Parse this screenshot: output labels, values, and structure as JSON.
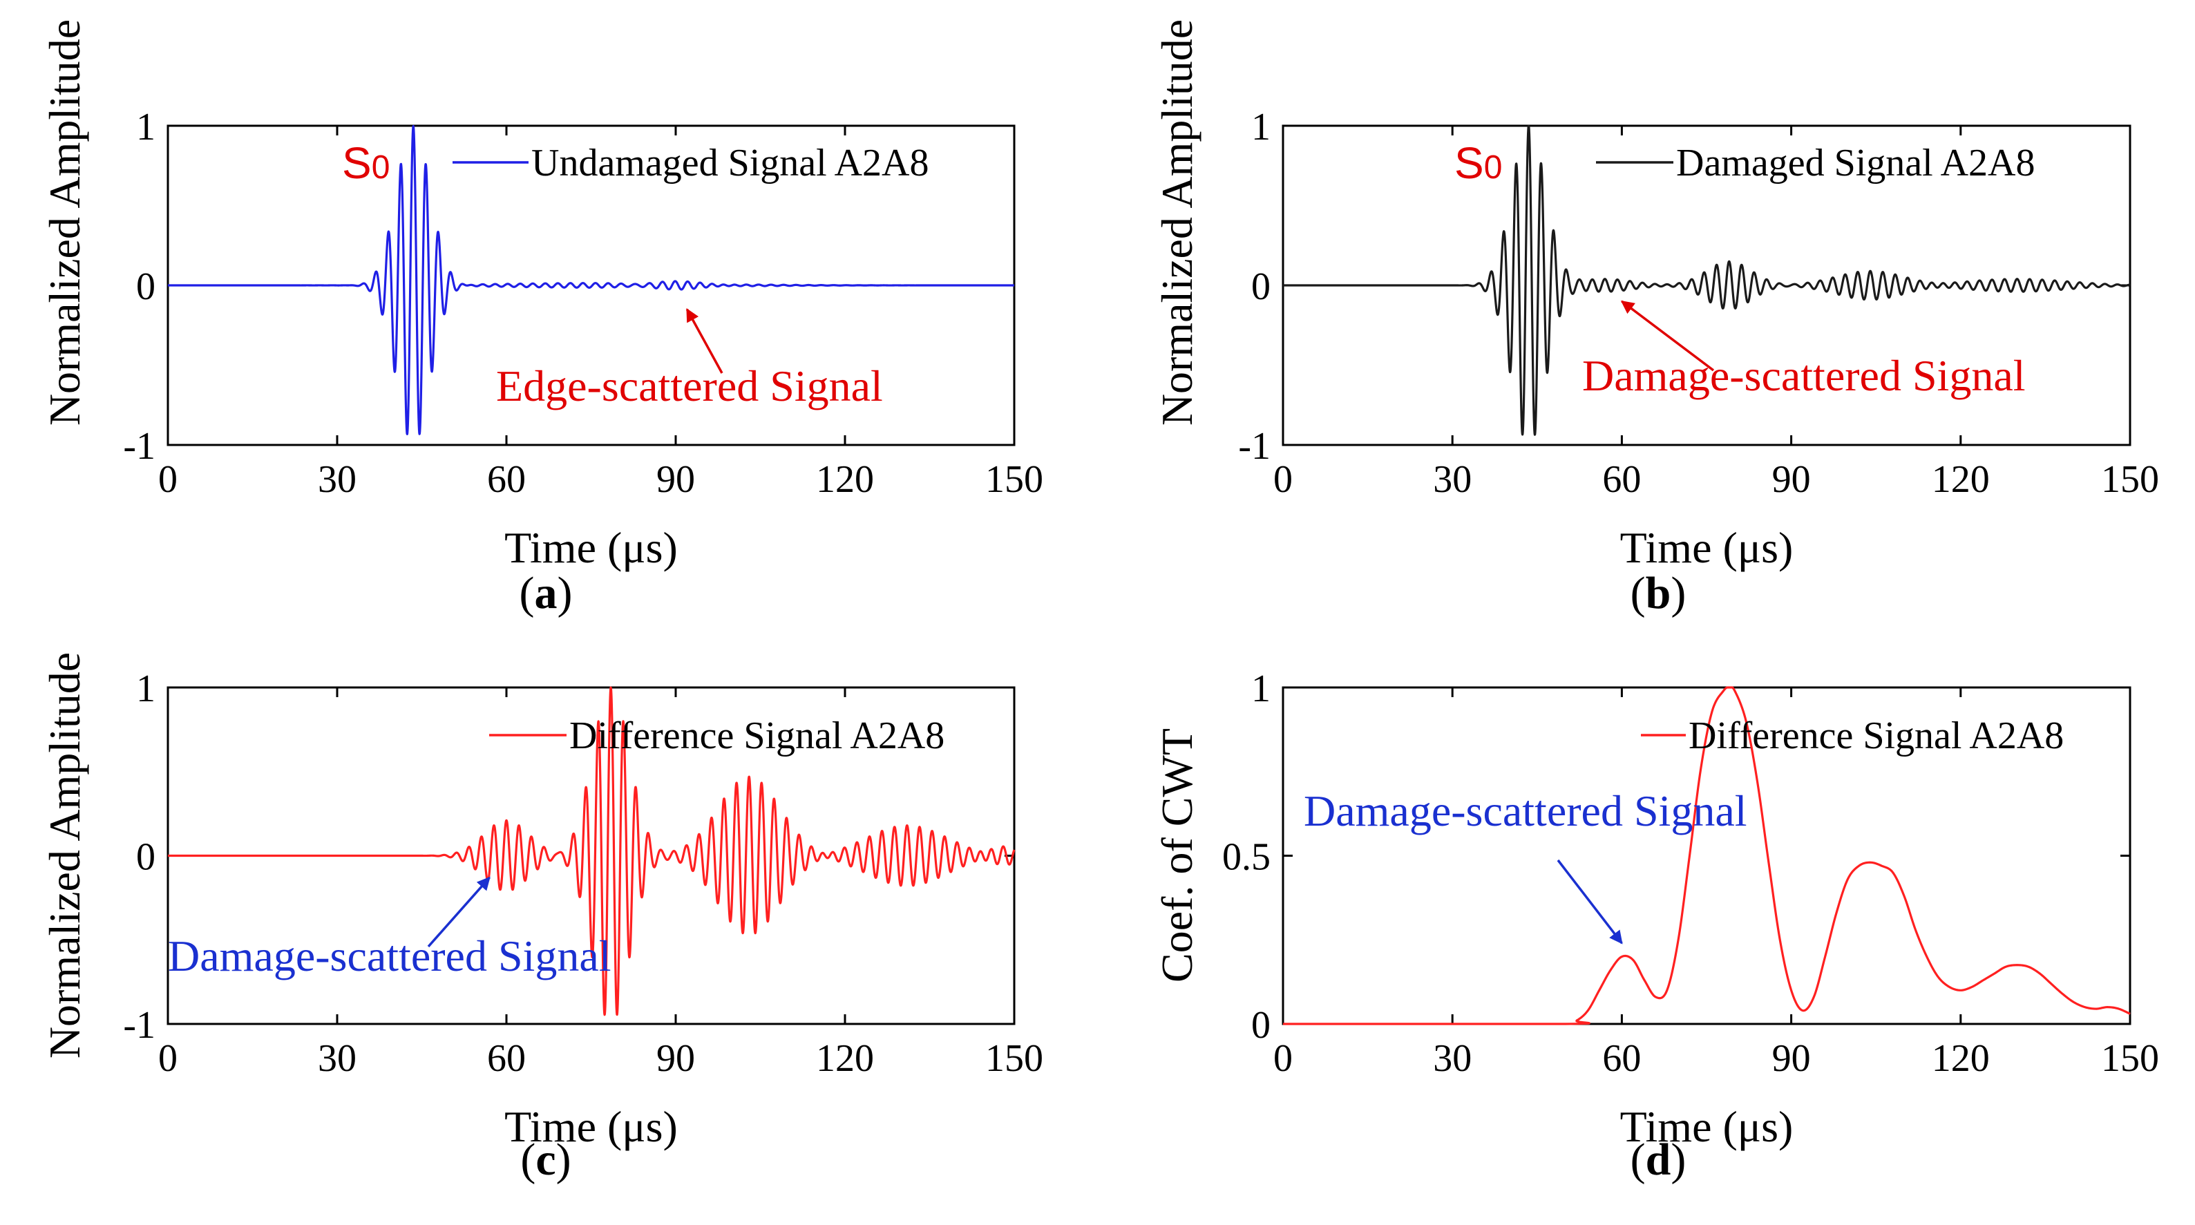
{
  "chart_data": [
    {
      "id": "a",
      "type": "line",
      "caption_letter": "a",
      "xlabel": "Time (μs)",
      "ylabel": "Normalized Amplitude",
      "xlim": [
        0,
        150
      ],
      "ylim": [
        -1,
        1
      ],
      "xticks": [
        "0",
        "30",
        "60",
        "90",
        "120",
        "150"
      ],
      "yticks": [
        "-1",
        "0",
        "1"
      ],
      "series": [
        {
          "name": "Undamaged Signal A2A8",
          "color": "#1f1fe6",
          "packets": [
            {
              "center": 43.5,
              "amp": 1.0,
              "freq": 0.45,
              "sigma": 3.0
            },
            {
              "center": 90,
              "amp": 0.035,
              "freq": 0.45,
              "sigma": 5
            },
            {
              "center": 78,
              "amp": 0.015,
              "freq": 0.45,
              "sigma": 18
            }
          ]
        }
      ],
      "annotations": [
        {
          "text": "S0",
          "color": "#e00000"
        },
        {
          "text": "Edge-scattered Signal",
          "color": "#e00000",
          "arrow_to": [
            92,
            -0.15
          ]
        }
      ]
    },
    {
      "id": "b",
      "type": "line",
      "caption_letter": "b",
      "xlabel": "Time (μs)",
      "ylabel": "Normalized Amplitude",
      "xlim": [
        0,
        150
      ],
      "ylim": [
        -1,
        1
      ],
      "xticks": [
        "0",
        "30",
        "60",
        "90",
        "120",
        "150"
      ],
      "yticks": [
        "-1",
        "0",
        "1"
      ],
      "series": [
        {
          "name": "Damaged Signal A2A8",
          "color": "#1a1a1a",
          "packets": [
            {
              "center": 43.5,
              "amp": 1.0,
              "freq": 0.45,
              "sigma": 3.0
            },
            {
              "center": 57,
              "amp": 0.04,
              "freq": 0.45,
              "sigma": 5
            },
            {
              "center": 79,
              "amp": 0.15,
              "freq": 0.45,
              "sigma": 4
            },
            {
              "center": 104,
              "amp": 0.09,
              "freq": 0.45,
              "sigma": 6
            },
            {
              "center": 130,
              "amp": 0.04,
              "freq": 0.45,
              "sigma": 9
            }
          ]
        }
      ],
      "annotations": [
        {
          "text": "S0",
          "color": "#e00000"
        },
        {
          "text": "Damage-scattered Signal",
          "color": "#e00000",
          "arrow_to": [
            60,
            -0.1
          ]
        }
      ]
    },
    {
      "id": "c",
      "type": "line",
      "caption_letter": "c",
      "xlabel": "Time (μs)",
      "ylabel": "Normalized Amplitude",
      "xlim": [
        0,
        150
      ],
      "ylim": [
        -1,
        1
      ],
      "xticks": [
        "0",
        "30",
        "60",
        "90",
        "120",
        "150"
      ],
      "yticks": [
        "-1",
        "0",
        "1"
      ],
      "series": [
        {
          "name": "Difference Signal A2A8",
          "color": "#ff2020",
          "packets": [
            {
              "center": 60,
              "amp": 0.21,
              "freq": 0.45,
              "sigma": 4
            },
            {
              "center": 78.5,
              "amp": 1.0,
              "freq": 0.45,
              "sigma": 3.3
            },
            {
              "center": 103,
              "amp": 0.47,
              "freq": 0.45,
              "sigma": 5.5
            },
            {
              "center": 131,
              "amp": 0.18,
              "freq": 0.45,
              "sigma": 7
            },
            {
              "center": 148,
              "amp": 0.06,
              "freq": 0.45,
              "sigma": 3
            }
          ]
        }
      ],
      "annotations": [
        {
          "text": "Damage-scattered Signal",
          "color": "#1a30d0",
          "arrow_to": [
            57,
            -0.13
          ]
        }
      ]
    },
    {
      "id": "d",
      "type": "line",
      "caption_letter": "d",
      "xlabel": "Time (μs)",
      "ylabel": "Coef. of CWT",
      "xlim": [
        0,
        150
      ],
      "ylim": [
        0,
        1
      ],
      "xticks": [
        "0",
        "30",
        "60",
        "90",
        "120",
        "150"
      ],
      "yticks": [
        "0",
        "0.5",
        "1"
      ],
      "series": [
        {
          "name": "Difference Signal A2A8",
          "color": "#ff2020",
          "x": [
            0,
            50,
            52,
            54,
            56,
            58,
            60,
            62,
            64,
            66,
            68,
            70,
            72,
            74,
            76,
            78,
            79,
            80,
            82,
            84,
            86,
            88,
            90,
            92,
            94,
            96,
            98,
            100,
            102,
            104,
            106,
            108,
            110,
            112,
            114,
            116,
            118,
            120,
            122,
            124,
            126,
            128,
            130,
            132,
            134,
            136,
            138,
            140,
            142,
            144,
            146,
            148,
            150
          ],
          "y": [
            0,
            0,
            0.01,
            0.04,
            0.1,
            0.16,
            0.2,
            0.19,
            0.13,
            0.08,
            0.1,
            0.25,
            0.5,
            0.76,
            0.93,
            0.99,
            1.0,
            0.99,
            0.9,
            0.72,
            0.48,
            0.25,
            0.1,
            0.04,
            0.08,
            0.2,
            0.33,
            0.43,
            0.47,
            0.48,
            0.47,
            0.45,
            0.38,
            0.28,
            0.2,
            0.14,
            0.11,
            0.1,
            0.11,
            0.13,
            0.15,
            0.17,
            0.175,
            0.17,
            0.15,
            0.12,
            0.09,
            0.065,
            0.05,
            0.045,
            0.05,
            0.045,
            0.03
          ]
        }
      ],
      "annotations": [
        {
          "text": "Damage-scattered Signal",
          "color": "#1a30d0",
          "arrow_to": [
            60,
            0.24
          ]
        }
      ]
    }
  ]
}
